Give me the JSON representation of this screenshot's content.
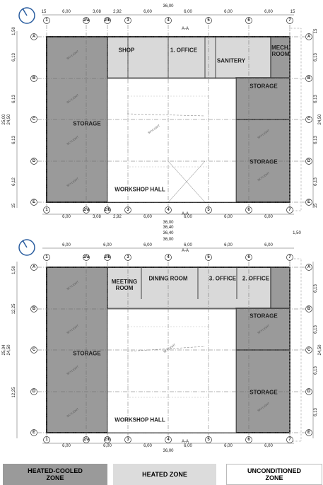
{
  "plans": [
    {
      "top_dims": [
        "15",
        "6,00",
        "3,08",
        "2,92",
        "6,00",
        "6,00",
        "6,00",
        "6,00",
        "15"
      ],
      "top_totals": [
        "36,00"
      ],
      "section_top": "A-A",
      "top_grid": [
        "1",
        "2/a",
        "2/b",
        "3",
        "4",
        "5",
        "6",
        "7"
      ],
      "left_grid": [
        "A",
        "B",
        "C",
        "D",
        "E"
      ],
      "right_grid": [
        "A",
        "B",
        "C",
        "D",
        "E"
      ],
      "left_dims": [
        "1,50",
        "6,13",
        "6,13",
        "6,13",
        "6,12",
        "15"
      ],
      "left_totals": [
        "25,00",
        "24,50"
      ],
      "right_dims": [
        "15",
        "6,13",
        "6,13",
        "6,13",
        "6,13",
        "15"
      ],
      "right_total": "24,50",
      "bottom_grid": [
        "1",
        "2/a",
        "2/b",
        "3",
        "4",
        "5",
        "6",
        "7"
      ],
      "bottom_dims": [
        "6,00",
        "3,08",
        "2,92",
        "6,00",
        "6,00",
        "6,00",
        "6,00"
      ],
      "bottom_totals": [
        "36,00",
        "36,40"
      ],
      "section_bottom": "A-A",
      "rooms": [
        "SHOP",
        "1. OFFICE",
        "SANITERY",
        "MECH. ROOM",
        "STORAGE",
        "STORAGE",
        "STORAGE",
        "WORKSHOP HALL"
      ],
      "skylights": [
        "SKYLIGHT",
        "SKYLIGHT",
        "SKYLIGHT",
        "SKYLIGHT",
        "SKYLIGHT",
        "SKYLIGHT",
        "SKYLIGHT"
      ]
    },
    {
      "top_dims": [
        "6,00",
        "6,00",
        "6,00",
        "6,00",
        "6,00",
        "6,00"
      ],
      "top_totals": [
        "36,40",
        "36,00"
      ],
      "offset_dim": "1,50",
      "section_top": "A-A",
      "top_grid": [
        "1",
        "2/a",
        "2/b",
        "3",
        "4",
        "5",
        "6",
        "7"
      ],
      "left_grid": [
        "A",
        "B",
        "C",
        "D",
        "E"
      ],
      "right_grid": [
        "A",
        "B",
        "C",
        "D",
        "E"
      ],
      "left_dims": [
        "1,50",
        "12,25",
        "12,25"
      ],
      "left_totals": [
        "25,04",
        "24,50"
      ],
      "right_dims": [
        "6,13",
        "6,13",
        "6,13",
        "6,13"
      ],
      "right_total": "24,50",
      "bottom_grid": [
        "1",
        "2/a",
        "2/b",
        "3",
        "4",
        "5",
        "6",
        "7"
      ],
      "bottom_dims": [
        "6,00",
        "6,00",
        "6,00",
        "6,00",
        "6,00",
        "6,00"
      ],
      "bottom_totals": [
        "36,00"
      ],
      "section_bottom": "A-A",
      "rooms": [
        "MEETING ROOM",
        "DINING ROOM",
        "3. OFFICE",
        "2. OFFICE",
        "STORAGE",
        "STORAGE",
        "STORAGE",
        "WORKSHOP HALL"
      ],
      "skylights": [
        "SKYLIGHT",
        "SKYLIGHT",
        "SKYLIGHT",
        "SKYLIGHT",
        "SKYLIGHT",
        "SKYLIGHT",
        "SKYLIGHT"
      ]
    }
  ],
  "legend": [
    "HEATED-COOLED ZONE",
    "HEATED ZONE",
    "UNCONDITIONED ZONE"
  ]
}
